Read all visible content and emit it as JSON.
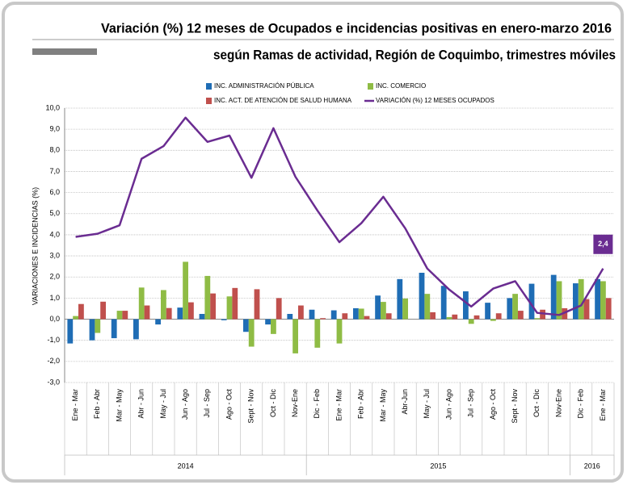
{
  "chart_data": {
    "type": "bar_line",
    "title": "Variación (%) 12 meses de Ocupados e incidencias positivas en enero-marzo 2016",
    "subtitle": "según Ramas de actividad, Región de Coquimbo, trimestres móviles",
    "y_label": "VARIACIONES E INCIDENCIAS (%)",
    "categories": [
      "Ene - Mar",
      "Feb - Abr",
      "Mar - May",
      "Abr - Jun",
      "May - Jul",
      "Jun - Ago",
      "Jul - Sep",
      "Ago - Oct",
      "Sept - Nov",
      "Oct - Dic",
      "Nov-Ene",
      "Dic - Feb",
      "Ene - Mar",
      "Feb - Abr",
      "Mar - May",
      "Abr-Jun",
      "May - Jul",
      "Jun - Ago",
      "Jul - Sep",
      "Ago - Oct",
      "Sept - Nov",
      "Oct - Dic",
      "Nov-Ene",
      "Dic - Feb",
      "Ene - Mar"
    ],
    "groups": [
      {
        "label": "2014",
        "size": 11
      },
      {
        "label": "2015",
        "size": 12
      },
      {
        "label": "2016",
        "size": 2
      }
    ],
    "series": [
      {
        "name": "INC. ADMINISTRACIÓN PÚBLICA",
        "kind": "bar",
        "color": "#1f6db5",
        "values": [
          -1.15,
          -1.0,
          -0.9,
          -0.95,
          -0.25,
          0.55,
          0.25,
          -0.05,
          -0.6,
          -0.25,
          0.25,
          0.45,
          0.42,
          0.52,
          1.12,
          1.9,
          2.2,
          1.58,
          1.32,
          0.78,
          1.0,
          1.68,
          2.1,
          1.7,
          1.9
        ]
      },
      {
        "name": "INC. COMERCIO",
        "kind": "bar",
        "color": "#8fbc45",
        "values": [
          0.15,
          -0.65,
          0.4,
          1.5,
          1.38,
          2.72,
          2.05,
          1.08,
          -1.3,
          -0.7,
          -1.62,
          -1.35,
          -1.15,
          0.5,
          0.82,
          0.98,
          1.2,
          0.1,
          -0.22,
          -0.08,
          1.2,
          0.05,
          1.8,
          1.9,
          1.8
        ]
      },
      {
        "name": "INC. ACT. DE ATENCIÓN DE SALUD HUMANA",
        "kind": "bar",
        "color": "#c0504d",
        "values": [
          0.72,
          0.83,
          0.4,
          0.65,
          0.53,
          0.8,
          1.22,
          1.48,
          1.42,
          1.0,
          0.65,
          0.05,
          0.28,
          0.15,
          0.28,
          0.0,
          0.33,
          0.22,
          0.18,
          0.28,
          0.4,
          0.45,
          0.52,
          0.95,
          1.0
        ]
      },
      {
        "name": "VARIACIÓN (%) 12 MESES OCUPADOS",
        "kind": "line",
        "color": "#6a2c91",
        "values": [
          3.9,
          4.05,
          4.45,
          7.6,
          8.2,
          9.55,
          8.4,
          8.7,
          6.7,
          9.05,
          6.75,
          5.15,
          3.65,
          4.55,
          5.8,
          4.3,
          2.4,
          1.4,
          0.6,
          1.45,
          1.8,
          0.3,
          0.2,
          0.65,
          2.4
        ],
        "value_labels": [
          null,
          null,
          null,
          null,
          null,
          null,
          null,
          null,
          null,
          null,
          null,
          null,
          null,
          null,
          null,
          null,
          null,
          null,
          null,
          null,
          null,
          null,
          null,
          null,
          "2,4"
        ]
      }
    ],
    "ylim": [
      -3,
      10
    ],
    "yticks": [
      {
        "value": -3,
        "label": "-3,0"
      },
      {
        "value": -2,
        "label": "-2,0"
      },
      {
        "value": -1,
        "label": "-1,0"
      },
      {
        "value": 0,
        "label": "0,0"
      },
      {
        "value": 1,
        "label": "1,0"
      },
      {
        "value": 2,
        "label": "2,0"
      },
      {
        "value": 3,
        "label": "3,0"
      },
      {
        "value": 4,
        "label": "4,0"
      },
      {
        "value": 5,
        "label": "5,0"
      },
      {
        "value": 6,
        "label": "6,0"
      },
      {
        "value": 7,
        "label": "7,0"
      },
      {
        "value": 8,
        "label": "8,0"
      },
      {
        "value": 9,
        "label": "9,0"
      },
      {
        "value": 10,
        "label": "10,0"
      }
    ],
    "grid": true
  }
}
